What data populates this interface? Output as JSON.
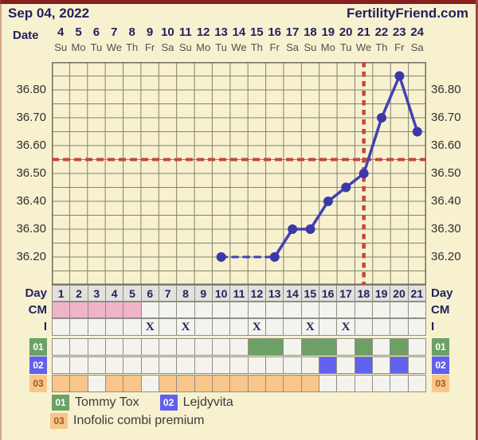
{
  "header": {
    "date": "Sep 04, 2022",
    "brand": "FertilityFriend.com"
  },
  "calendar": {
    "date_label": "Date",
    "dates": [
      "4",
      "5",
      "6",
      "7",
      "8",
      "9",
      "10",
      "11",
      "12",
      "13",
      "14",
      "15",
      "16",
      "17",
      "18",
      "19",
      "20",
      "21",
      "22",
      "23",
      "24"
    ],
    "weekdays": [
      "Su",
      "Mo",
      "Tu",
      "We",
      "Th",
      "Fr",
      "Sa",
      "Su",
      "Mo",
      "Tu",
      "We",
      "Th",
      "Fr",
      "Sa",
      "Su",
      "Mo",
      "Tu",
      "We",
      "Th",
      "Fr",
      "Sa"
    ]
  },
  "chart_data": {
    "type": "line",
    "x_days": [
      1,
      2,
      3,
      4,
      5,
      6,
      7,
      8,
      9,
      10,
      11,
      12,
      13,
      14,
      15,
      16,
      17,
      18,
      19,
      20,
      21
    ],
    "y_tick_labels": [
      "36.80",
      "36.70",
      "36.60",
      "36.50",
      "36.40",
      "36.30",
      "36.20"
    ],
    "y_ticks": [
      36.8,
      36.7,
      36.6,
      36.5,
      36.4,
      36.3,
      36.2
    ],
    "ylim": [
      36.1,
      36.9
    ],
    "minor_step": 0.05,
    "grid": true,
    "series": [
      {
        "name": "temperature",
        "points": [
          [
            10,
            36.2
          ],
          [
            13,
            36.2
          ],
          [
            14,
            36.3
          ],
          [
            15,
            36.3
          ],
          [
            16,
            36.4
          ],
          [
            17,
            36.45
          ],
          [
            18,
            36.5
          ],
          [
            19,
            36.7
          ],
          [
            20,
            36.85
          ],
          [
            21,
            36.65
          ]
        ]
      }
    ],
    "dashed_segments": [
      [
        10,
        13
      ]
    ],
    "coverline_temp": 36.55,
    "ovulation_line_day": 18
  },
  "table": {
    "day_label": "Day",
    "days": [
      "1",
      "2",
      "3",
      "4",
      "5",
      "6",
      "7",
      "8",
      "9",
      "10",
      "11",
      "12",
      "13",
      "14",
      "15",
      "16",
      "17",
      "18",
      "19",
      "20",
      "21"
    ],
    "cm_label": "CM",
    "cm_marked_days": [
      1,
      2,
      3,
      4,
      5
    ],
    "intercourse_label": "I",
    "intercourse_mark": "X",
    "intercourse_days": [
      6,
      8,
      12,
      15,
      17
    ],
    "meds": [
      {
        "id": "01",
        "name": "Tommy Tox",
        "color": "#6da065",
        "text_color": "#ffffff",
        "days": [
          12,
          13,
          15,
          16,
          18,
          20
        ]
      },
      {
        "id": "02",
        "name": "Lejdyvita",
        "color": "#6161ee",
        "text_color": "#ffffff",
        "days": [
          16,
          18,
          20
        ]
      },
      {
        "id": "03",
        "name": "Inofolic combi premium",
        "color": "#f8c68b",
        "text_color": "#9c5a20",
        "days": [
          1,
          2,
          4,
          5,
          7,
          8,
          9,
          10,
          11,
          12,
          13,
          14,
          15
        ]
      }
    ]
  },
  "colors": {
    "page_bg": "#f7f1d0",
    "maroon_top": "#871d1d",
    "maroon_side": "#a14840",
    "navy": "#22225f",
    "weekday_gray": "#54514a",
    "grid_line": "#83826d",
    "chart_frame": "#6f6e5c",
    "temp_line": "#4340b5",
    "temp_dot": "#3b38a8",
    "signal_red": "#c7463b",
    "day_header_bg": "#e2e1dc",
    "cell_bg": "#f4f3ee",
    "cm_pink": "#f1b3c8"
  }
}
